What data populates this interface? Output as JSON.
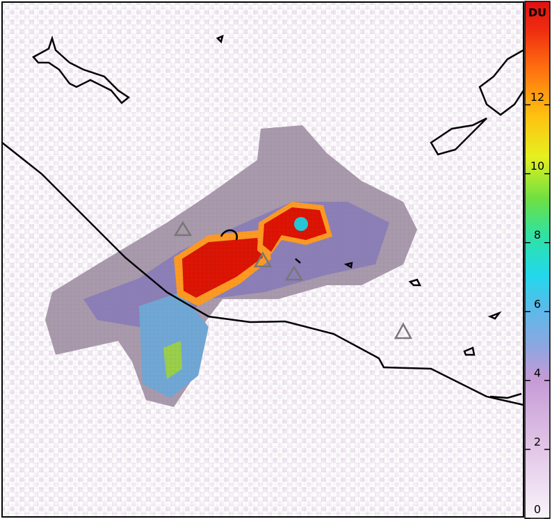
{
  "colorbar": {
    "label": "DU",
    "lim": [
      0,
      15
    ],
    "ticks": [
      0,
      2,
      4,
      6,
      8,
      10,
      12
    ]
  }
}
